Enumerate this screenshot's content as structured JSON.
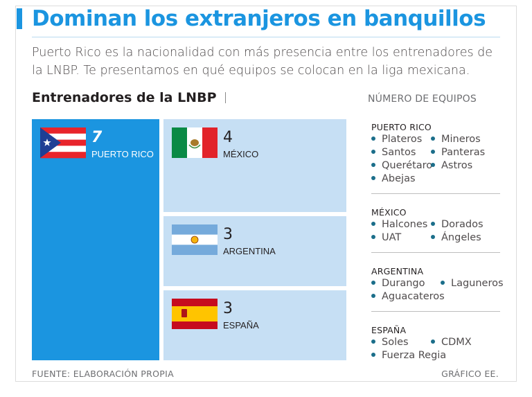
{
  "header": {
    "title": "Dominan los extranjeros en banquillos",
    "subtitle": "Puerto Rico es la nacionalidad con más presencia entre los entrenadores de la LNBP. Te presentamos en qué equipos se colocan en la liga mexicana."
  },
  "chart_header": {
    "title": "Entrenadores de la LNBP",
    "count_header": "NÚMERO DE EQUIPOS"
  },
  "colors": {
    "accent": "#1b95e0",
    "primary_tile": "#1b95e0",
    "secondary_tile": "#c6dff4",
    "bullet": "#1b6e8a"
  },
  "chart_data": {
    "type": "treemap",
    "title": "Entrenadores de la LNBP",
    "items": [
      {
        "label": "PUERTO RICO",
        "value": 7,
        "flag": "puerto-rico-flag"
      },
      {
        "label": "MÉXICO",
        "value": 4,
        "flag": "mexico-flag"
      },
      {
        "label": "ARGENTINA",
        "value": 3,
        "flag": "argentina-flag"
      },
      {
        "label": "ESPAÑA",
        "value": 3,
        "flag": "spain-flag"
      }
    ]
  },
  "legend": [
    {
      "country": "PUERTO  RICO",
      "teams": [
        "Plateros",
        "Mineros",
        "Santos",
        "Panteras",
        "Querétaro",
        "Astros",
        "Abejas"
      ]
    },
    {
      "country": "MÉXICO",
      "teams": [
        "Halcones",
        "Dorados",
        "UAT",
        "Ángeles"
      ]
    },
    {
      "country": "ARGENTINA",
      "teams": [
        "Durango",
        "Laguneros",
        "Aguacateros"
      ]
    },
    {
      "country": "ESPAÑA",
      "teams": [
        "Soles",
        "CDMX",
        "Fuerza Regia"
      ]
    }
  ],
  "footer": {
    "source": "FUENTE: ELABORACIÓN PROPIA",
    "credit": "GRÁFICO EE."
  }
}
